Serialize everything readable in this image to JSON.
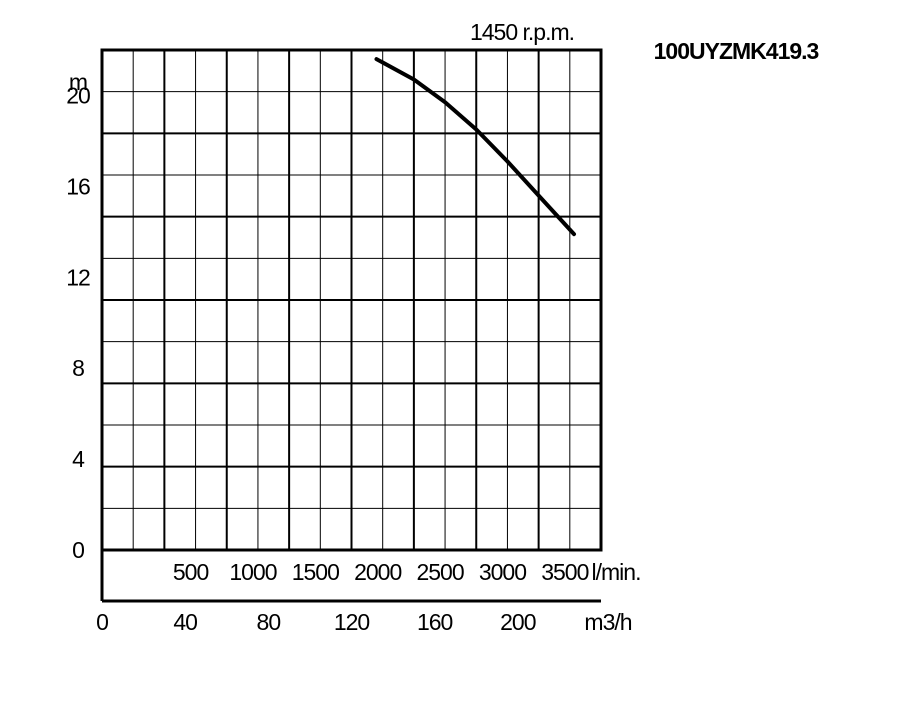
{
  "chart_data": {
    "type": "line",
    "title": "100UYZMK419.3",
    "subtitle": "1450 r.p.m.",
    "ylabel": "m",
    "xlabel": "m3/h",
    "x2label": "l/min.",
    "ylim": [
      0,
      22
    ],
    "xlim": [
      0,
      240
    ],
    "yticks": [
      "0",
      "4",
      "8",
      "12",
      "16",
      "20"
    ],
    "xticks": [
      "0",
      "40",
      "80",
      "120",
      "160",
      "200"
    ],
    "x2ticks": [
      "500",
      "1000",
      "1500",
      "2000",
      "2500",
      "3000",
      "3500"
    ],
    "grid": true,
    "series": [
      {
        "x": [
          132,
          150,
          165,
          180,
          195,
          210,
          227
        ],
        "y": [
          21.6,
          20.7,
          19.7,
          18.5,
          17.1,
          15.6,
          13.9
        ]
      }
    ]
  }
}
